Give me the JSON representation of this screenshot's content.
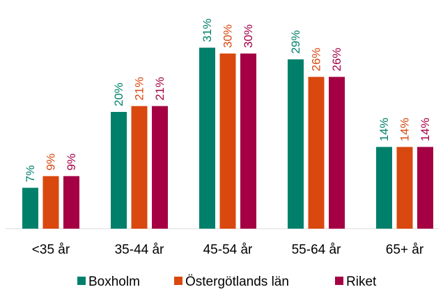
{
  "chart_data": {
    "type": "bar",
    "categories": [
      "<35 år",
      "35-44 år",
      "45-54 år",
      "55-64 år",
      "65+ år"
    ],
    "series": [
      {
        "name": "Boxholm",
        "color": "#00806a",
        "values": [
          7,
          20,
          31,
          29,
          14
        ]
      },
      {
        "name": "Östergötlands län",
        "color": "#d9480f",
        "values": [
          9,
          21,
          30,
          26,
          14
        ]
      },
      {
        "name": "Riket",
        "color": "#a50044",
        "values": [
          9,
          21,
          30,
          26,
          14
        ]
      }
    ],
    "data_labels": [
      [
        "7%",
        "20%",
        "31%",
        "29%",
        "14%"
      ],
      [
        "9%",
        "21%",
        "30%",
        "26%",
        "14%"
      ],
      [
        "9%",
        "21%",
        "30%",
        "26%",
        "14%"
      ]
    ],
    "ylim": [
      0,
      40
    ],
    "grid": false,
    "legend_position": "bottom"
  }
}
